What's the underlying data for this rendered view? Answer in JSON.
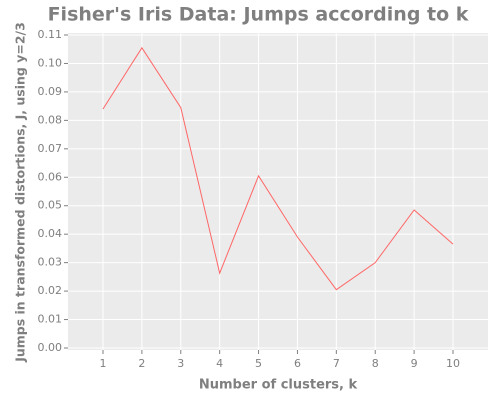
{
  "chart_data": {
    "type": "line",
    "title": "Fisher's Iris Data: Jumps according to k",
    "x_label": "Number of clusters, k",
    "y_label": "Jumps in transformed distortions, J, using y=2/3",
    "x": [
      1,
      2,
      3,
      4,
      5,
      6,
      7,
      8,
      9,
      10
    ],
    "series": [
      {
        "color": "#ff6666",
        "values": [
          0.084,
          0.1055,
          0.0845,
          0.0263,
          0.0605,
          0.039,
          0.0205,
          0.03,
          0.0485,
          0.0365
        ]
      }
    ],
    "xlim": [
      0.1,
      10.9
    ],
    "xticks": [
      1,
      2,
      3,
      4,
      5,
      6,
      7,
      8,
      9,
      10
    ],
    "ylim": [
      0,
      0.11
    ],
    "yticks": [
      {
        "value": 0,
        "label": "0.00"
      },
      {
        "value": 0.01,
        "label": "0.01"
      },
      {
        "value": 0.02,
        "label": "0.02"
      },
      {
        "value": 0.03,
        "label": "0.03"
      },
      {
        "value": 0.04,
        "label": "0.04"
      },
      {
        "value": 0.05,
        "label": "0.05"
      },
      {
        "value": 0.06,
        "label": "0.06"
      },
      {
        "value": 0.07,
        "label": "0.07"
      },
      {
        "value": 0.08,
        "label": "0.08"
      },
      {
        "value": 0.09,
        "label": "0.09"
      },
      {
        "value": 0.1,
        "label": "0.10"
      },
      {
        "value": 0.11,
        "label": "0.11"
      }
    ],
    "grid": true,
    "panel_color": "#ebebeb"
  }
}
